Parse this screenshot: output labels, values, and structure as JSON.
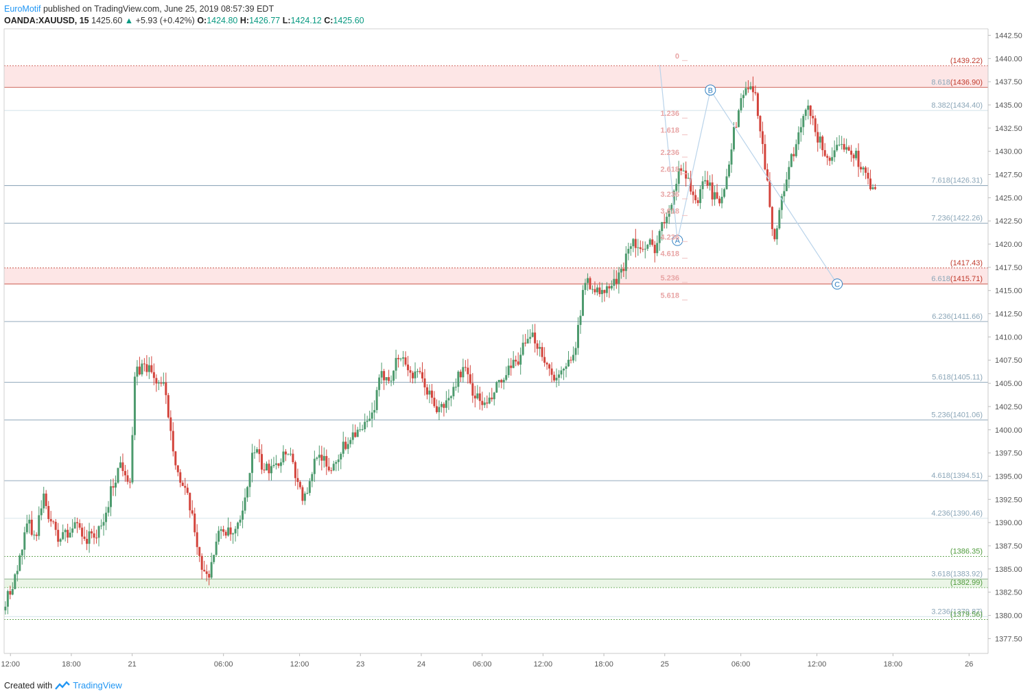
{
  "header": {
    "author": "EuroMotif",
    "published_text": "published on TradingView.com, June 25, 2019 08:57:39 EDT"
  },
  "quote": {
    "symbol": "OANDA:XAUUSD, 15",
    "last": "1425.60",
    "change_arrow": "▲",
    "change": "+5.93 (+0.42%)",
    "o_label": "O:",
    "o": "1424.80",
    "h_label": "H:",
    "h": "1426.77",
    "l_label": "L:",
    "l": "1424.12",
    "c_label": "C:",
    "c": "1425.60"
  },
  "footer": {
    "created_with": "Created with",
    "brand": "TradingView",
    "logo_icon": "tradingview-logo-icon"
  },
  "colors": {
    "up": "#4c9a6d",
    "down": "#d3443c",
    "grid_blue": "#6e8ea6",
    "zone_red": "#fde6e6",
    "zone_green": "#eaf5e6",
    "wave": "#b9d3ea"
  },
  "chart_data": {
    "type": "candlestick",
    "symbol": "OANDA:XAUUSD",
    "interval": "15",
    "ylim": [
      1375.9,
      1443.2
    ],
    "y_ticks": [
      1377.5,
      1380.0,
      1382.5,
      1385.0,
      1387.5,
      1390.0,
      1392.5,
      1395.0,
      1397.5,
      1400.0,
      1402.5,
      1405.0,
      1407.5,
      1410.0,
      1412.5,
      1415.0,
      1417.5,
      1420.0,
      1422.5,
      1425.0,
      1427.5,
      1430.0,
      1432.5,
      1435.0,
      1437.5,
      1440.0,
      1442.5
    ],
    "x_ticks": [
      {
        "label": "12:00",
        "i": 2
      },
      {
        "label": "18:00",
        "i": 26
      },
      {
        "label": "21",
        "i": 50
      },
      {
        "label": "06:00",
        "i": 86
      },
      {
        "label": "12:00",
        "i": 116
      },
      {
        "label": "23",
        "i": 140
      },
      {
        "label": "24",
        "i": 164
      },
      {
        "label": "06:00",
        "i": 188
      },
      {
        "label": "12:00",
        "i": 212
      },
      {
        "label": "18:00",
        "i": 236
      },
      {
        "label": "25",
        "i": 260
      },
      {
        "label": "06:00",
        "i": 290
      },
      {
        "label": "12:00",
        "i": 320
      },
      {
        "label": "18:00",
        "i": 350
      },
      {
        "label": "26",
        "i": 380
      }
    ],
    "x_bars": 388,
    "close_path": [
      1381.5,
      1382.5,
      1384.5,
      1386.0,
      1388.5,
      1390.0,
      1388.0,
      1390.5,
      1392.5,
      1391.0,
      1389.5,
      1388.0,
      1389.0,
      1388.5,
      1389.5,
      1390.0,
      1389.0,
      1388.0,
      1389.0,
      1388.5,
      1389.5,
      1391.0,
      1393.5,
      1395.0,
      1396.5,
      1395.5,
      1394.5,
      1406.0,
      1406.5,
      1407.0,
      1406.5,
      1405.5,
      1405.0,
      1404.5,
      1401.5,
      1398.0,
      1395.0,
      1393.5,
      1392.5,
      1390.0,
      1387.5,
      1385.0,
      1384.0,
      1386.0,
      1388.0,
      1389.5,
      1389.0,
      1388.5,
      1389.0,
      1390.0,
      1392.5,
      1396.5,
      1398.0,
      1396.5,
      1395.5,
      1396.0,
      1397.0,
      1396.5,
      1397.5,
      1398.0,
      1396.0,
      1394.0,
      1392.5,
      1393.0,
      1396.0,
      1398.0,
      1397.0,
      1395.5,
      1396.0,
      1397.0,
      1398.0,
      1398.5,
      1399.5,
      1400.0,
      1399.5,
      1400.5,
      1401.0,
      1403.0,
      1405.5,
      1406.0,
      1405.5,
      1407.0,
      1408.0,
      1407.5,
      1406.5,
      1405.5,
      1406.0,
      1405.0,
      1404.0,
      1403.0,
      1402.0,
      1402.5,
      1403.0,
      1404.0,
      1405.5,
      1406.5,
      1406.0,
      1404.5,
      1403.5,
      1403.0,
      1402.5,
      1403.0,
      1404.5,
      1405.0,
      1405.5,
      1406.5,
      1407.0,
      1408.0,
      1409.0,
      1409.5,
      1410.0,
      1409.0,
      1408.0,
      1406.5,
      1406.0,
      1405.5,
      1406.0,
      1407.0,
      1408.5,
      1410.0,
      1414.0,
      1416.5,
      1415.5,
      1415.0,
      1414.5,
      1415.0,
      1415.5,
      1416.0,
      1416.5,
      1418.5,
      1420.5,
      1420.0,
      1419.5,
      1419.0,
      1420.0,
      1419.5,
      1421.0,
      1422.5,
      1424.0,
      1425.5,
      1427.5,
      1428.5,
      1427.0,
      1425.5,
      1424.5,
      1426.0,
      1427.0,
      1425.5,
      1424.5,
      1425.0,
      1427.5,
      1430.5,
      1433.0,
      1435.5,
      1437.0,
      1436.5,
      1436.0,
      1433.0,
      1429.0,
      1424.5,
      1420.5,
      1423.0,
      1426.0,
      1428.5,
      1429.5,
      1431.5,
      1433.5,
      1434.5,
      1433.0,
      1431.5,
      1430.5,
      1429.5,
      1429.0,
      1430.0,
      1430.5,
      1431.0,
      1430.0,
      1429.5,
      1428.5,
      1427.5,
      1426.0,
      1425.6
    ],
    "fib_levels": [
      {
        "label": "8.618",
        "price": "1436.90",
        "value": 1436.9,
        "color": "#c0392b",
        "style": "solid"
      },
      {
        "label": "8.382",
        "price": "1434.40",
        "value": 1434.4,
        "color": "#c9dde5",
        "style": "solid"
      },
      {
        "label": "7.618",
        "price": "1426.31",
        "value": 1426.31,
        "color": "#6e8ea6",
        "style": "solid"
      },
      {
        "label": "7.236",
        "price": "1422.26",
        "value": 1422.26,
        "color": "#6e8ea6",
        "style": "solid"
      },
      {
        "label": "6.618",
        "price": "1415.71",
        "value": 1415.71,
        "color": "#c0392b",
        "style": "solid"
      },
      {
        "label": "6.236",
        "price": "1411.66",
        "value": 1411.66,
        "color": "#6e8ea6",
        "style": "solid"
      },
      {
        "label": "5.618",
        "price": "1405.11",
        "value": 1405.11,
        "color": "#6e8ea6",
        "style": "solid"
      },
      {
        "label": "5.236",
        "price": "1401.06",
        "value": 1401.06,
        "color": "#6e8ea6",
        "style": "solid"
      },
      {
        "label": "4.618",
        "price": "1394.51",
        "value": 1394.51,
        "color": "#6e8ea6",
        "style": "solid"
      },
      {
        "label": "4.236",
        "price": "1390.46",
        "value": 1390.46,
        "color": "#c9dde5",
        "style": "solid"
      },
      {
        "label": "3.618",
        "price": "1383.92",
        "value": 1383.92,
        "color": "#6e9e6e",
        "style": "solid"
      },
      {
        "label": "3.236",
        "price": "1379.87",
        "value": 1379.87,
        "color": "#c9dde5",
        "style": "solid"
      }
    ],
    "zone_lines": [
      {
        "price": "1439.22",
        "value": 1439.22,
        "color": "#c0392b"
      },
      {
        "price": "1417.43",
        "value": 1417.43,
        "color": "#c0392b"
      },
      {
        "price": "1386.35",
        "value": 1386.35,
        "color": "#4e9a3b"
      },
      {
        "price": "1382.99",
        "value": 1382.99,
        "color": "#4e9a3b"
      },
      {
        "price": "1379.56",
        "value": 1379.56,
        "color": "#4e9a3b"
      }
    ],
    "zones": [
      {
        "from": 1436.9,
        "to": 1439.22,
        "kind": "red"
      },
      {
        "from": 1415.71,
        "to": 1417.43,
        "kind": "red"
      },
      {
        "from": 1382.99,
        "to": 1383.92,
        "kind": "green"
      }
    ],
    "extension_labels": [
      {
        "label": "0",
        "value": 1440.0
      },
      {
        "label": "1.236",
        "value": 1433.8
      },
      {
        "label": "1.618",
        "value": 1432.0
      },
      {
        "label": "2.236",
        "value": 1429.6
      },
      {
        "label": "2.618",
        "value": 1427.8
      },
      {
        "label": "3.236",
        "value": 1425.1
      },
      {
        "label": "3.618",
        "value": 1423.3
      },
      {
        "label": "4.236",
        "value": 1420.5
      },
      {
        "label": "4.618",
        "value": 1418.7
      },
      {
        "label": "5.236",
        "value": 1416.1
      },
      {
        "label": "5.618",
        "value": 1414.2
      }
    ],
    "wave_points": [
      {
        "label": "",
        "i": 258,
        "value": 1439.3
      },
      {
        "label": "A",
        "i": 265,
        "value": 1420.4
      },
      {
        "label": "B",
        "i": 278,
        "value": 1436.6
      },
      {
        "label": "C",
        "i": 328,
        "value": 1415.7
      }
    ]
  }
}
